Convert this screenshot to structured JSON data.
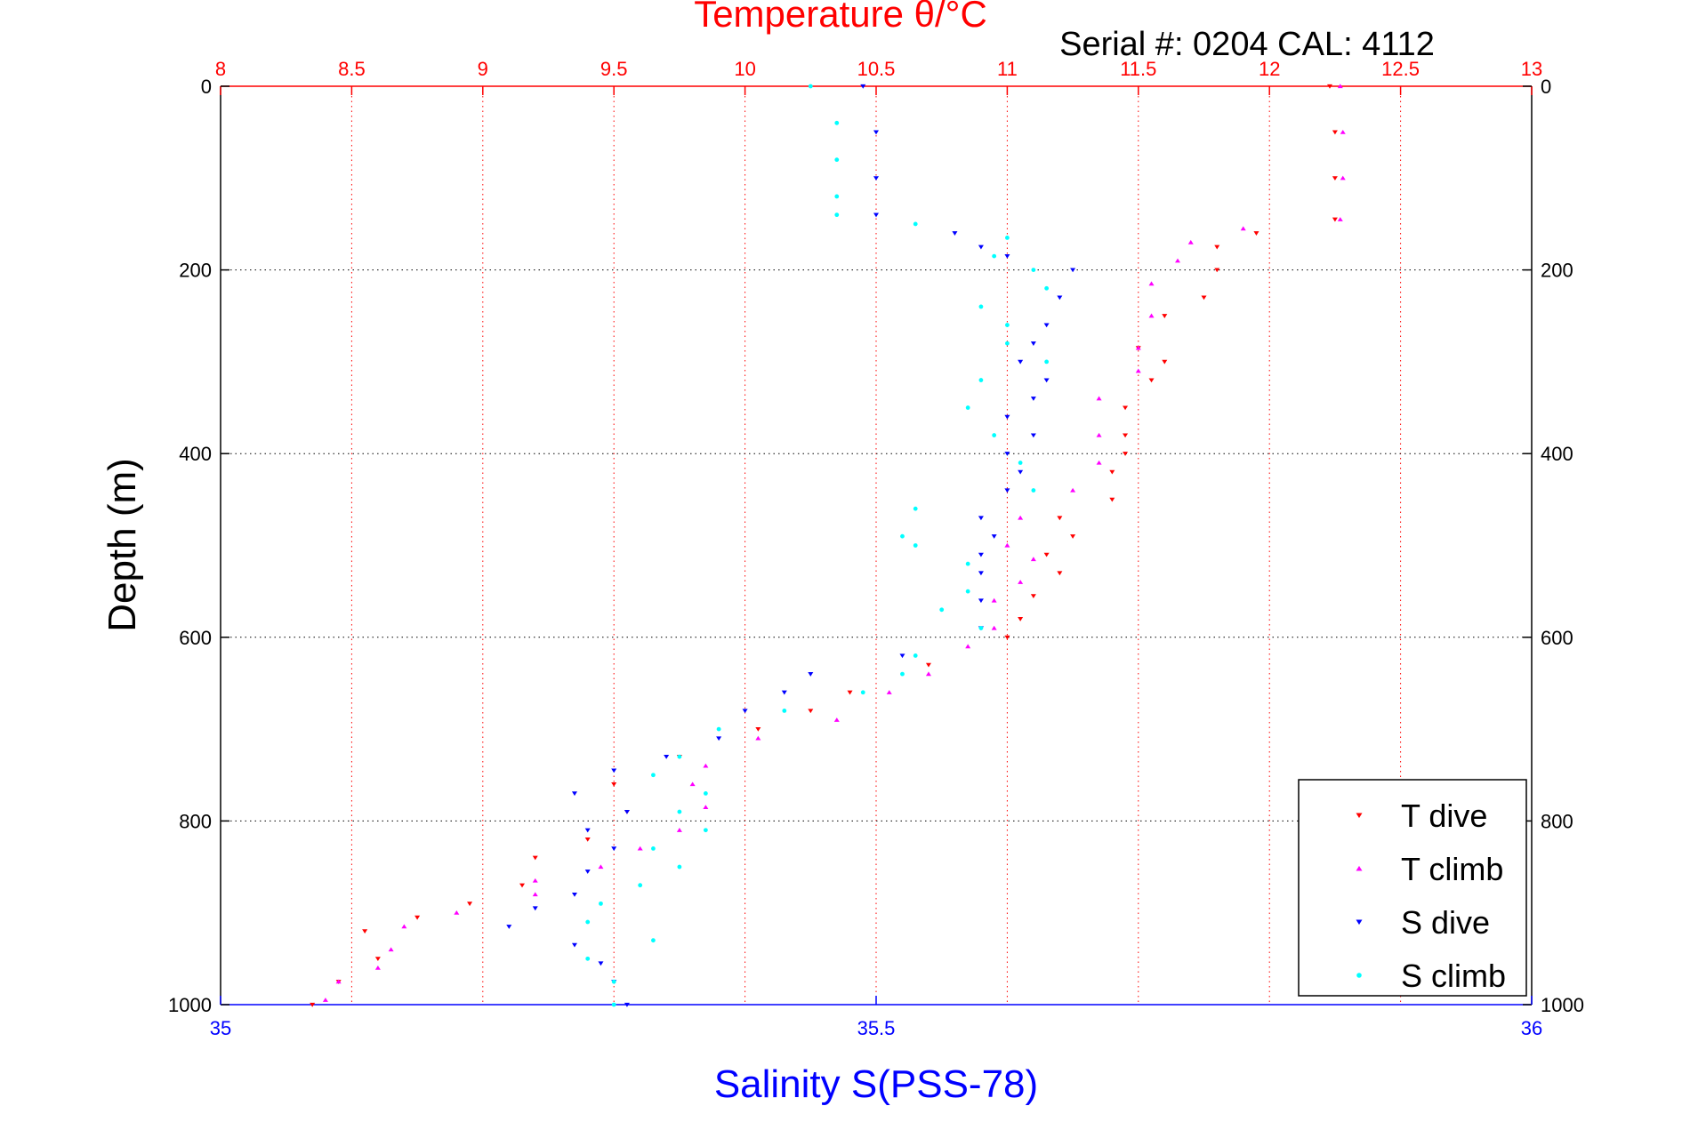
{
  "chart_data": {
    "type": "scatter",
    "title": "Temperature θ/°C",
    "subtitle": "Serial #: 0204  CAL: 4112",
    "ylabel": "Depth (m)",
    "xlabel": "Salinity S(PSS-78)",
    "ylim": [
      0,
      1000
    ],
    "y_reversed": true,
    "temperature_axis": {
      "range": [
        8,
        13
      ],
      "ticks": [
        "8",
        "8.5",
        "9",
        "9.5",
        "10",
        "10.5",
        "11",
        "11.5",
        "12",
        "12.5",
        "13"
      ],
      "color": "#ff0000"
    },
    "salinity_axis": {
      "range": [
        35,
        36
      ],
      "ticks": [
        "35",
        "35.5",
        "36"
      ],
      "color": "#0000ff"
    },
    "depth_ticks": [
      "0",
      "200",
      "400",
      "600",
      "800",
      "1000"
    ],
    "grid": true,
    "legend_position": "bottom-right",
    "series": [
      {
        "name": "T dive",
        "axis": "temperature",
        "color": "#ff0000",
        "marker": "triangle-down",
        "points": [
          [
            12.23,
            0
          ],
          [
            12.25,
            50
          ],
          [
            12.25,
            100
          ],
          [
            12.25,
            145
          ],
          [
            11.95,
            160
          ],
          [
            11.8,
            175
          ],
          [
            11.8,
            200
          ],
          [
            11.75,
            230
          ],
          [
            11.6,
            250
          ],
          [
            11.5,
            285
          ],
          [
            11.6,
            300
          ],
          [
            11.55,
            320
          ],
          [
            11.45,
            350
          ],
          [
            11.45,
            380
          ],
          [
            11.45,
            400
          ],
          [
            11.4,
            420
          ],
          [
            11.4,
            450
          ],
          [
            11.2,
            470
          ],
          [
            11.25,
            490
          ],
          [
            11.15,
            510
          ],
          [
            11.2,
            530
          ],
          [
            11.1,
            555
          ],
          [
            11.05,
            580
          ],
          [
            11.0,
            600
          ],
          [
            10.7,
            630
          ],
          [
            10.4,
            660
          ],
          [
            10.25,
            680
          ],
          [
            10.05,
            700
          ],
          [
            9.75,
            730
          ],
          [
            9.5,
            760
          ],
          [
            9.55,
            790
          ],
          [
            9.4,
            820
          ],
          [
            9.2,
            840
          ],
          [
            9.15,
            870
          ],
          [
            8.95,
            890
          ],
          [
            8.75,
            905
          ],
          [
            8.55,
            920
          ],
          [
            8.6,
            950
          ],
          [
            8.45,
            975
          ],
          [
            8.35,
            1000
          ]
        ]
      },
      {
        "name": "T climb",
        "axis": "temperature",
        "color": "#ff00ff",
        "marker": "triangle-up",
        "points": [
          [
            12.27,
            0
          ],
          [
            12.28,
            50
          ],
          [
            12.28,
            100
          ],
          [
            12.27,
            145
          ],
          [
            11.9,
            155
          ],
          [
            11.7,
            170
          ],
          [
            11.65,
            190
          ],
          [
            11.55,
            215
          ],
          [
            11.55,
            250
          ],
          [
            11.5,
            285
          ],
          [
            11.5,
            310
          ],
          [
            11.35,
            340
          ],
          [
            11.35,
            380
          ],
          [
            11.35,
            410
          ],
          [
            11.25,
            440
          ],
          [
            11.05,
            470
          ],
          [
            11.0,
            500
          ],
          [
            11.1,
            515
          ],
          [
            11.05,
            540
          ],
          [
            10.95,
            560
          ],
          [
            10.95,
            590
          ],
          [
            10.85,
            610
          ],
          [
            10.7,
            640
          ],
          [
            10.55,
            660
          ],
          [
            10.35,
            690
          ],
          [
            10.05,
            710
          ],
          [
            9.85,
            740
          ],
          [
            9.8,
            760
          ],
          [
            9.85,
            785
          ],
          [
            9.75,
            810
          ],
          [
            9.6,
            830
          ],
          [
            9.45,
            850
          ],
          [
            9.2,
            865
          ],
          [
            9.2,
            880
          ],
          [
            8.9,
            900
          ],
          [
            8.7,
            915
          ],
          [
            8.65,
            940
          ],
          [
            8.6,
            960
          ],
          [
            8.45,
            975
          ],
          [
            8.4,
            995
          ]
        ]
      },
      {
        "name": "S dive",
        "axis": "salinity",
        "color": "#0000ff",
        "marker": "triangle-down",
        "points": [
          [
            35.49,
            0
          ],
          [
            35.5,
            50
          ],
          [
            35.5,
            100
          ],
          [
            35.5,
            140
          ],
          [
            35.56,
            160
          ],
          [
            35.58,
            175
          ],
          [
            35.6,
            185
          ],
          [
            35.65,
            200
          ],
          [
            35.64,
            230
          ],
          [
            35.63,
            260
          ],
          [
            35.62,
            280
          ],
          [
            35.61,
            300
          ],
          [
            35.63,
            320
          ],
          [
            35.62,
            340
          ],
          [
            35.6,
            360
          ],
          [
            35.62,
            380
          ],
          [
            35.6,
            400
          ],
          [
            35.61,
            420
          ],
          [
            35.6,
            440
          ],
          [
            35.58,
            470
          ],
          [
            35.59,
            490
          ],
          [
            35.58,
            510
          ],
          [
            35.58,
            530
          ],
          [
            35.58,
            560
          ],
          [
            35.58,
            590
          ],
          [
            35.52,
            620
          ],
          [
            35.45,
            640
          ],
          [
            35.43,
            660
          ],
          [
            35.4,
            680
          ],
          [
            35.38,
            710
          ],
          [
            35.34,
            730
          ],
          [
            35.3,
            745
          ],
          [
            35.27,
            770
          ],
          [
            35.31,
            790
          ],
          [
            35.28,
            810
          ],
          [
            35.3,
            830
          ],
          [
            35.28,
            855
          ],
          [
            35.27,
            880
          ],
          [
            35.24,
            895
          ],
          [
            35.22,
            915
          ],
          [
            35.27,
            935
          ],
          [
            35.29,
            955
          ],
          [
            35.3,
            975
          ],
          [
            35.31,
            1000
          ]
        ]
      },
      {
        "name": "S climb",
        "axis": "salinity",
        "color": "#00ffff",
        "marker": "dot",
        "points": [
          [
            35.45,
            0
          ],
          [
            35.47,
            40
          ],
          [
            35.47,
            80
          ],
          [
            35.47,
            120
          ],
          [
            35.47,
            140
          ],
          [
            35.53,
            150
          ],
          [
            35.6,
            165
          ],
          [
            35.59,
            185
          ],
          [
            35.62,
            200
          ],
          [
            35.63,
            220
          ],
          [
            35.58,
            240
          ],
          [
            35.6,
            260
          ],
          [
            35.6,
            280
          ],
          [
            35.63,
            300
          ],
          [
            35.58,
            320
          ],
          [
            35.57,
            350
          ],
          [
            35.59,
            380
          ],
          [
            35.61,
            410
          ],
          [
            35.62,
            440
          ],
          [
            35.53,
            460
          ],
          [
            35.52,
            490
          ],
          [
            35.53,
            500
          ],
          [
            35.57,
            520
          ],
          [
            35.57,
            550
          ],
          [
            35.55,
            570
          ],
          [
            35.58,
            590
          ],
          [
            35.53,
            620
          ],
          [
            35.52,
            640
          ],
          [
            35.49,
            660
          ],
          [
            35.43,
            680
          ],
          [
            35.38,
            700
          ],
          [
            35.35,
            730
          ],
          [
            35.33,
            750
          ],
          [
            35.37,
            770
          ],
          [
            35.35,
            790
          ],
          [
            35.37,
            810
          ],
          [
            35.33,
            830
          ],
          [
            35.35,
            850
          ],
          [
            35.32,
            870
          ],
          [
            35.29,
            890
          ],
          [
            35.28,
            910
          ],
          [
            35.33,
            930
          ],
          [
            35.28,
            950
          ],
          [
            35.3,
            975
          ],
          [
            35.3,
            1000
          ]
        ]
      }
    ]
  }
}
